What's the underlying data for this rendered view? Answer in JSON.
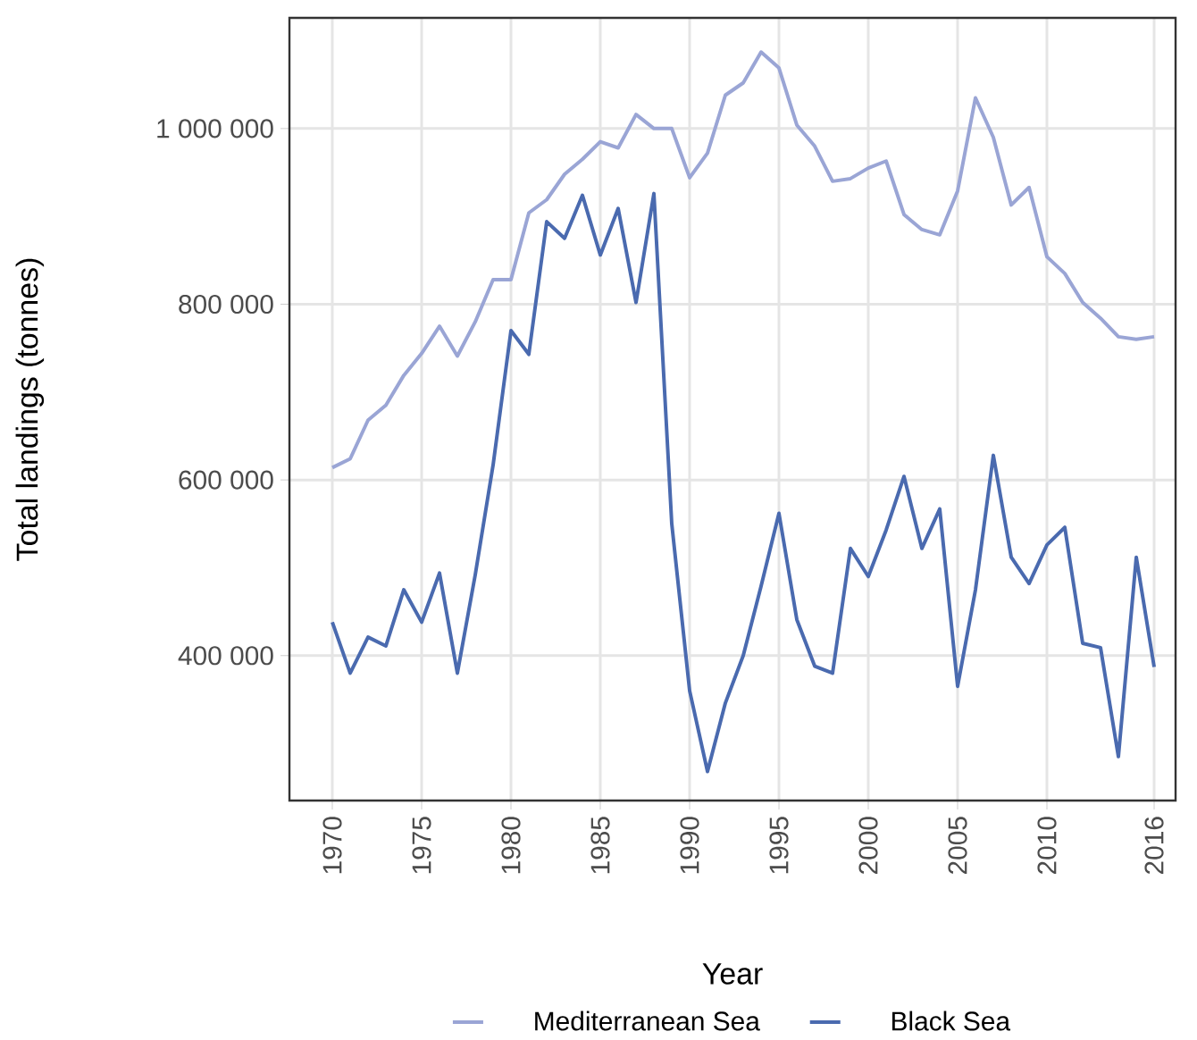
{
  "chart_data": {
    "type": "line",
    "xlabel": "Year",
    "ylabel": "Total landings (tonnes)",
    "legend": "bottom",
    "grid": true,
    "x": [
      1970,
      1971,
      1972,
      1973,
      1974,
      1975,
      1976,
      1977,
      1978,
      1979,
      1980,
      1981,
      1982,
      1983,
      1984,
      1985,
      1986,
      1987,
      1988,
      1989,
      1990,
      1991,
      1992,
      1993,
      1994,
      1995,
      1996,
      1997,
      1998,
      1999,
      2000,
      2001,
      2002,
      2003,
      2004,
      2005,
      2006,
      2007,
      2008,
      2009,
      2010,
      2011,
      2012,
      2013,
      2014,
      2015,
      2016
    ],
    "xlim": [
      1967.6,
      2017.2
    ],
    "xticks": [
      1970,
      1975,
      1980,
      1985,
      1990,
      1995,
      2000,
      2005,
      2010,
      2016
    ],
    "ylim": [
      235000,
      1126000
    ],
    "yticks": [
      {
        "value": 400000,
        "label": "400 000"
      },
      {
        "value": 600000,
        "label": "600 000"
      },
      {
        "value": 800000,
        "label": "800 000"
      },
      {
        "value": 1000000,
        "label": "1 000 000"
      }
    ],
    "series": [
      {
        "name": "Mediterranean Sea",
        "color": "#9aa5d5",
        "values": [
          614000,
          624000,
          668000,
          685000,
          719000,
          744000,
          775000,
          741000,
          780000,
          828000,
          828000,
          904000,
          919000,
          948000,
          965000,
          985000,
          978000,
          1016000,
          1000000,
          1000000,
          944000,
          972000,
          1038000,
          1052000,
          1087000,
          1069000,
          1004000,
          980000,
          940000,
          943000,
          955000,
          963000,
          902000,
          885000,
          879000,
          929000,
          1035000,
          990000,
          913000,
          933000,
          854000,
          835000,
          802000,
          784000,
          763000,
          760000,
          763000
        ]
      },
      {
        "name": "Black Sea",
        "color": "#4a6aaf",
        "values": [
          438000,
          380000,
          421000,
          411000,
          475000,
          438000,
          494000,
          380000,
          492000,
          617000,
          770000,
          743000,
          894000,
          875000,
          924000,
          856000,
          909000,
          802000,
          926000,
          550000,
          360000,
          268000,
          346000,
          400000,
          479000,
          562000,
          441000,
          388000,
          380000,
          522000,
          490000,
          543000,
          604000,
          522000,
          567000,
          365000,
          475000,
          628000,
          512000,
          482000,
          526000,
          546000,
          414000,
          409000,
          285000,
          512000,
          387000
        ]
      }
    ]
  }
}
